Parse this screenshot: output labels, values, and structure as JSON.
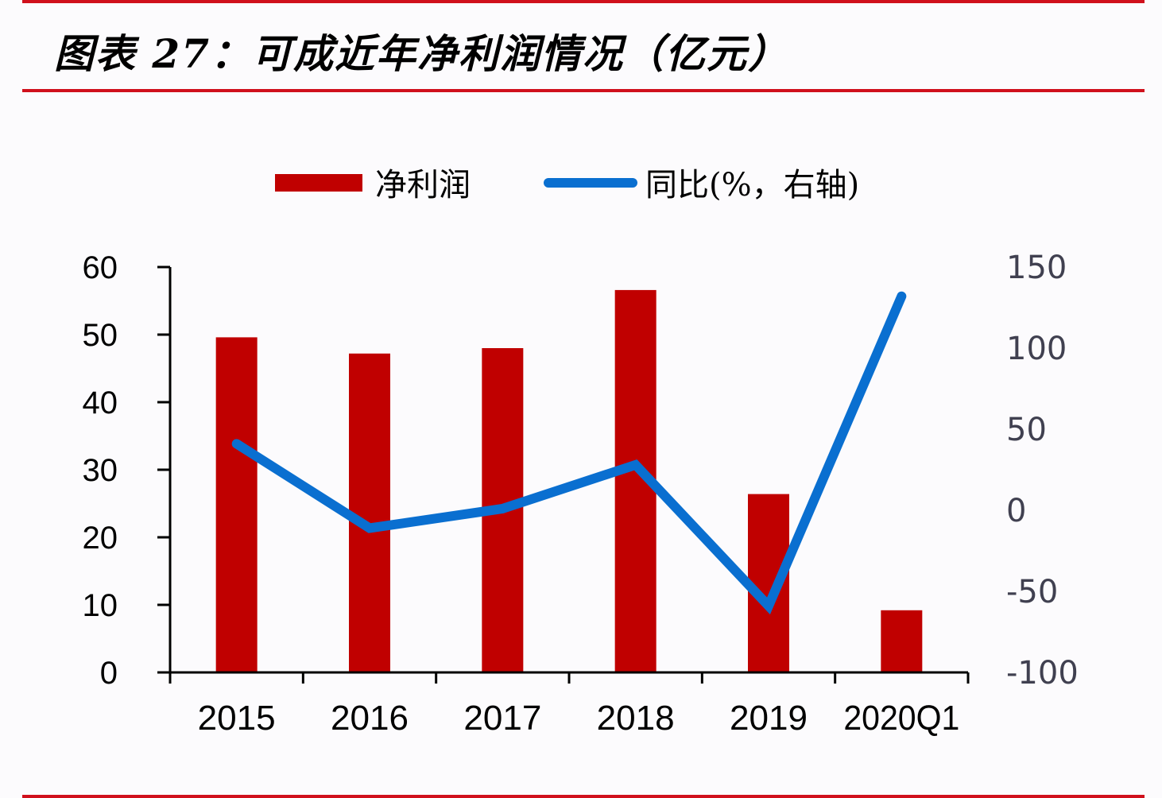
{
  "header": {
    "title": "图表 27：可成近年净利润情况（亿元）"
  },
  "legend": {
    "items": [
      {
        "label": "净利润",
        "type": "bar",
        "color": "#c00000"
      },
      {
        "label": "同比(%，右轴)",
        "type": "line",
        "color": "#0a6fd0"
      }
    ]
  },
  "colors": {
    "rule": "#d0101c",
    "bar": "#c00000",
    "line": "#0a6fd0"
  },
  "chart_data": {
    "type": "bar+line",
    "title": "图表 27：可成近年净利润情况（亿元）",
    "categories": [
      "2015",
      "2016",
      "2017",
      "2018",
      "2019",
      "2020Q1"
    ],
    "series": [
      {
        "name": "净利润",
        "type": "bar",
        "axis": "left",
        "values": [
          49.6,
          47.2,
          48.0,
          56.6,
          26.4,
          9.2
        ]
      },
      {
        "name": "同比(%，右轴)",
        "type": "line",
        "axis": "right",
        "values": [
          41,
          -11,
          1,
          28,
          -59,
          132
        ]
      }
    ],
    "left_axis": {
      "ticks": [
        "0",
        "10",
        "20",
        "30",
        "40",
        "50",
        "60"
      ],
      "ylim": [
        0,
        60
      ]
    },
    "right_axis": {
      "ticks": [
        "-100",
        "-50",
        "0",
        "50",
        "100",
        "150"
      ],
      "ylim": [
        -100,
        150
      ]
    },
    "xlabel": "",
    "ylabel": "",
    "grid": false,
    "legend_position": "top"
  }
}
